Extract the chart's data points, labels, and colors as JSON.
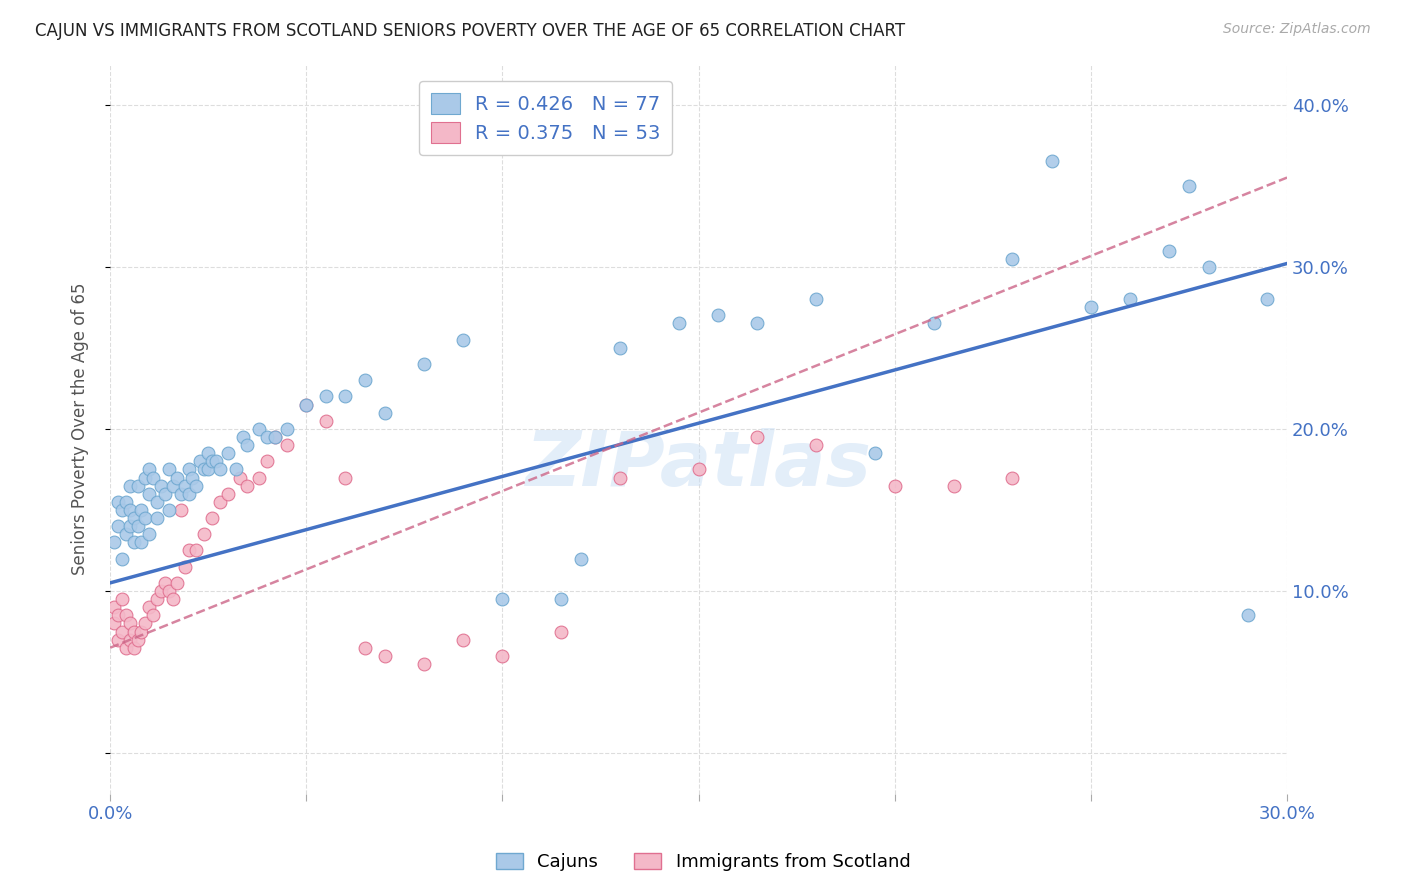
{
  "title": "CAJUN VS IMMIGRANTS FROM SCOTLAND SENIORS POVERTY OVER THE AGE OF 65 CORRELATION CHART",
  "source": "Source: ZipAtlas.com",
  "ylabel": "Seniors Poverty Over the Age of 65",
  "xlim": [
    0.0,
    0.3
  ],
  "ylim": [
    -0.025,
    0.425
  ],
  "xticks": [
    0.0,
    0.05,
    0.1,
    0.15,
    0.2,
    0.25,
    0.3
  ],
  "yticks": [
    0.0,
    0.1,
    0.2,
    0.3,
    0.4
  ],
  "legend_labels": [
    "Cajuns",
    "Immigrants from Scotland"
  ],
  "cajun_R": "0.426",
  "cajun_N": "77",
  "scotland_R": "0.375",
  "scotland_N": "53",
  "cajun_color": "#aac9e8",
  "cajun_edge_color": "#6fa8d0",
  "cajun_line_color": "#4472c4",
  "scotland_color": "#f4b8c8",
  "scotland_edge_color": "#e07090",
  "scotland_line_color": "#cc6688",
  "watermark": "ZIPatlas",
  "background_color": "#ffffff",
  "grid_color": "#dddddd",
  "title_color": "#222222",
  "axis_tick_color": "#4472c4",
  "cajun_scatter_x": [
    0.001,
    0.002,
    0.002,
    0.003,
    0.003,
    0.004,
    0.004,
    0.005,
    0.005,
    0.005,
    0.006,
    0.006,
    0.007,
    0.007,
    0.008,
    0.008,
    0.009,
    0.009,
    0.01,
    0.01,
    0.01,
    0.011,
    0.012,
    0.012,
    0.013,
    0.014,
    0.015,
    0.015,
    0.016,
    0.017,
    0.018,
    0.019,
    0.02,
    0.02,
    0.021,
    0.022,
    0.023,
    0.024,
    0.025,
    0.025,
    0.026,
    0.027,
    0.028,
    0.03,
    0.032,
    0.034,
    0.035,
    0.038,
    0.04,
    0.042,
    0.045,
    0.05,
    0.055,
    0.06,
    0.065,
    0.07,
    0.08,
    0.09,
    0.1,
    0.115,
    0.12,
    0.13,
    0.145,
    0.155,
    0.165,
    0.18,
    0.195,
    0.21,
    0.23,
    0.25,
    0.26,
    0.27,
    0.28,
    0.29,
    0.295,
    0.275,
    0.24
  ],
  "cajun_scatter_y": [
    0.13,
    0.155,
    0.14,
    0.15,
    0.12,
    0.155,
    0.135,
    0.165,
    0.14,
    0.15,
    0.145,
    0.13,
    0.165,
    0.14,
    0.15,
    0.13,
    0.17,
    0.145,
    0.16,
    0.135,
    0.175,
    0.17,
    0.155,
    0.145,
    0.165,
    0.16,
    0.175,
    0.15,
    0.165,
    0.17,
    0.16,
    0.165,
    0.175,
    0.16,
    0.17,
    0.165,
    0.18,
    0.175,
    0.175,
    0.185,
    0.18,
    0.18,
    0.175,
    0.185,
    0.175,
    0.195,
    0.19,
    0.2,
    0.195,
    0.195,
    0.2,
    0.215,
    0.22,
    0.22,
    0.23,
    0.21,
    0.24,
    0.255,
    0.095,
    0.095,
    0.12,
    0.25,
    0.265,
    0.27,
    0.265,
    0.28,
    0.185,
    0.265,
    0.305,
    0.275,
    0.28,
    0.31,
    0.3,
    0.085,
    0.28,
    0.35,
    0.365
  ],
  "scotland_scatter_x": [
    0.001,
    0.001,
    0.002,
    0.002,
    0.003,
    0.003,
    0.004,
    0.004,
    0.005,
    0.005,
    0.006,
    0.006,
    0.007,
    0.008,
    0.009,
    0.01,
    0.011,
    0.012,
    0.013,
    0.014,
    0.015,
    0.016,
    0.017,
    0.018,
    0.019,
    0.02,
    0.022,
    0.024,
    0.026,
    0.028,
    0.03,
    0.033,
    0.035,
    0.038,
    0.04,
    0.042,
    0.045,
    0.05,
    0.055,
    0.06,
    0.065,
    0.07,
    0.08,
    0.09,
    0.1,
    0.115,
    0.13,
    0.15,
    0.165,
    0.18,
    0.2,
    0.215,
    0.23
  ],
  "scotland_scatter_y": [
    0.09,
    0.08,
    0.085,
    0.07,
    0.095,
    0.075,
    0.085,
    0.065,
    0.08,
    0.07,
    0.075,
    0.065,
    0.07,
    0.075,
    0.08,
    0.09,
    0.085,
    0.095,
    0.1,
    0.105,
    0.1,
    0.095,
    0.105,
    0.15,
    0.115,
    0.125,
    0.125,
    0.135,
    0.145,
    0.155,
    0.16,
    0.17,
    0.165,
    0.17,
    0.18,
    0.195,
    0.19,
    0.215,
    0.205,
    0.17,
    0.065,
    0.06,
    0.055,
    0.07,
    0.06,
    0.075,
    0.17,
    0.175,
    0.195,
    0.19,
    0.165,
    0.165,
    0.17
  ],
  "cajun_line_x0": 0.0,
  "cajun_line_y0": 0.105,
  "cajun_line_x1": 0.3,
  "cajun_line_y1": 0.302,
  "scotland_line_x0": 0.0,
  "scotland_line_y0": 0.065,
  "scotland_line_x1": 0.3,
  "scotland_line_y1": 0.355
}
